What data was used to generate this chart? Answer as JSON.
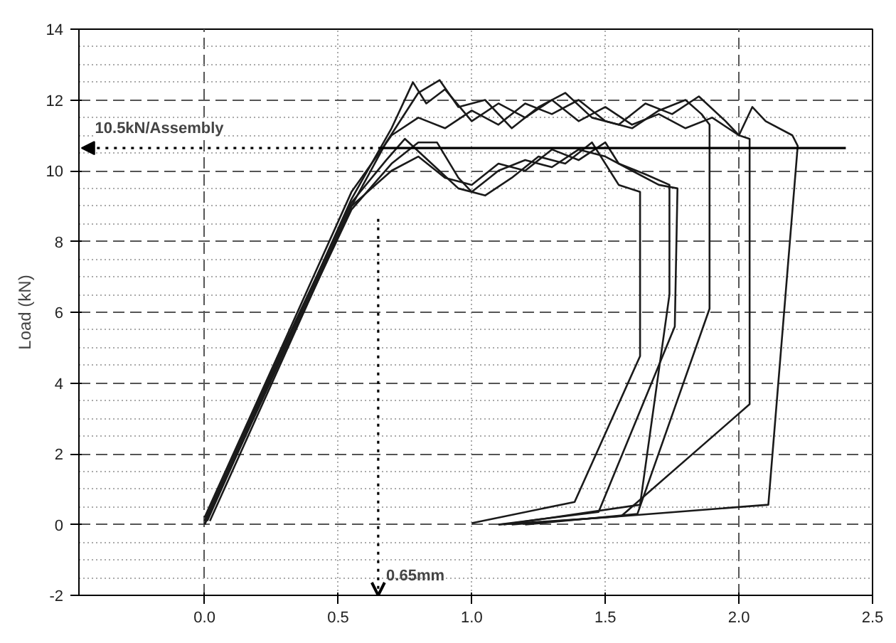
{
  "chart_data": {
    "type": "line",
    "ylabel": "Load (kN)",
    "xlim": [
      -0.47,
      2.5
    ],
    "xticks": [
      {
        "value": 0,
        "label": "0.0"
      },
      0.5,
      {
        "value": 1,
        "label": "1.0"
      },
      1.5,
      {
        "value": 2,
        "label": "2.0"
      },
      2.5
    ],
    "ylim": [
      -2,
      14
    ],
    "yticks": [
      -2,
      0,
      2,
      4,
      6,
      8,
      10,
      12,
      14
    ],
    "grid": true,
    "marker": "none",
    "line_style": "solid",
    "ref_lines": [
      {
        "axis": "y",
        "value": 10.64,
        "label": "10.5kN/Assembly",
        "color": "#000000",
        "line_style": "solid"
      },
      {
        "axis": "x",
        "value": 0.65,
        "label": "0.65mm",
        "color": "#000000",
        "line_style": "dotted"
      }
    ],
    "series": [
      {
        "color": "#1a1a1a",
        "x": [
          0,
          0.3,
          0.55,
          0.7,
          0.78,
          0.83,
          0.9,
          1.0,
          1.1,
          1.2,
          1.3,
          1.4,
          1.5,
          1.6,
          1.7,
          1.8,
          1.9,
          2.0,
          2.05,
          2.1,
          2.2,
          2.22,
          2.11,
          1.5,
          1.1
        ],
        "values": [
          0,
          5,
          9.2,
          11.2,
          12.5,
          11.9,
          12.3,
          11.4,
          11.9,
          11.5,
          12.0,
          11.4,
          11.8,
          11.3,
          11.6,
          11.2,
          11.5,
          11.0,
          11.8,
          11.4,
          11.0,
          10.7,
          0.56,
          0.2,
          0
        ]
      },
      {
        "color": "#1a1a1a",
        "x": [
          0.02,
          0.3,
          0.55,
          0.68,
          0.8,
          0.88,
          0.95,
          1.05,
          1.15,
          1.25,
          1.35,
          1.45,
          1.55,
          1.65,
          1.75,
          1.85,
          1.95,
          2.0,
          2.04,
          2.04,
          1.56,
          1.15
        ],
        "values": [
          0.1,
          4.8,
          9.0,
          10.8,
          12.2,
          12.56,
          11.8,
          12.0,
          11.2,
          11.8,
          12.2,
          11.5,
          11.3,
          11.9,
          11.6,
          12.1,
          11.4,
          11.0,
          10.9,
          3.4,
          0.24,
          0
        ]
      },
      {
        "color": "#1a1a1a",
        "x": [
          0,
          0.3,
          0.55,
          0.7,
          0.8,
          0.9,
          1.0,
          1.1,
          1.2,
          1.3,
          1.4,
          1.5,
          1.6,
          1.7,
          1.8,
          1.86,
          1.89,
          1.89,
          1.62,
          1.2
        ],
        "values": [
          0.2,
          5.2,
          9.4,
          11.0,
          11.5,
          11.2,
          11.7,
          11.3,
          11.9,
          11.6,
          12.0,
          11.4,
          11.2,
          11.7,
          12.0,
          11.6,
          11.3,
          6.1,
          0.3,
          0
        ]
      },
      {
        "color": "#1a1a1a",
        "x": [
          0,
          0.3,
          0.55,
          0.7,
          0.8,
          0.87,
          0.95,
          1.0,
          1.1,
          1.2,
          1.3,
          1.4,
          1.5,
          1.6,
          1.7,
          1.77,
          1.76,
          1.475,
          1.1
        ],
        "values": [
          0,
          4.9,
          8.9,
          10.2,
          10.8,
          10.8,
          9.8,
          9.4,
          10.0,
          10.3,
          10.1,
          10.6,
          10.4,
          10.0,
          9.6,
          9.5,
          5.6,
          0.36,
          0
        ]
      },
      {
        "color": "#1a1a1a",
        "x": [
          0.01,
          0.3,
          0.55,
          0.7,
          0.8,
          0.9,
          1.0,
          1.1,
          1.2,
          1.3,
          1.4,
          1.5,
          1.55,
          1.65,
          1.74,
          1.74,
          1.63,
          1.12
        ],
        "values": [
          0.1,
          5.0,
          9.0,
          10.0,
          10.4,
          9.8,
          9.6,
          10.2,
          10.0,
          10.6,
          10.3,
          10.8,
          10.2,
          9.9,
          9.6,
          6.5,
          0.56,
          0
        ]
      },
      {
        "color": "#1a1a1a",
        "x": [
          0,
          0.3,
          0.55,
          0.68,
          0.75,
          0.85,
          0.95,
          1.05,
          1.15,
          1.25,
          1.35,
          1.45,
          1.55,
          1.63,
          1.63,
          1.385,
          1.0
        ],
        "values": [
          0.1,
          5.1,
          9.1,
          10.3,
          10.9,
          10.2,
          9.5,
          9.3,
          9.8,
          10.4,
          10.2,
          10.8,
          9.6,
          9.4,
          4.76,
          0.64,
          0.04
        ]
      }
    ]
  }
}
